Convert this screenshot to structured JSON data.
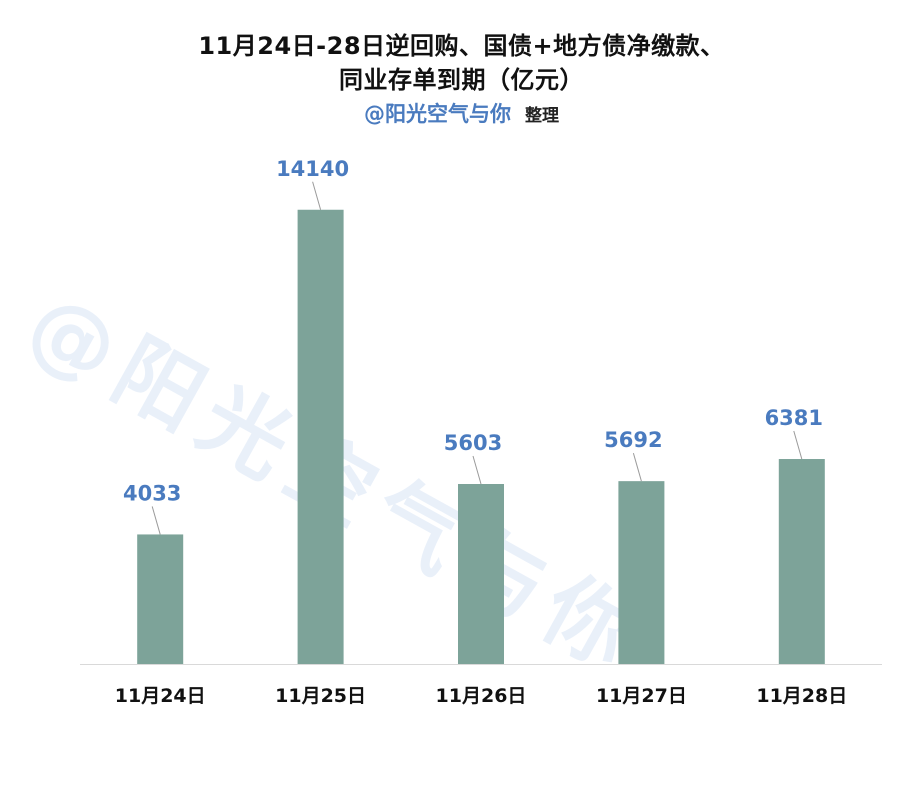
{
  "title_line1": "11月24日-28日逆回购、国债+地方债净缴款、",
  "title_line2": "同业存单到期（亿元）",
  "subtitle_author": "@阳光空气与你",
  "subtitle_note": "整理",
  "watermark": "@阳光空气与你",
  "colors": {
    "bar": "#7da399",
    "label": "#4a7bbf",
    "axis": "#d9d9d9"
  },
  "chart_data": {
    "type": "bar",
    "categories": [
      "11月24日",
      "11月25日",
      "11月26日",
      "11月27日",
      "11月28日"
    ],
    "values": [
      4033,
      14140,
      5603,
      5692,
      6381
    ],
    "ylim": [
      0,
      16000
    ],
    "grid": false,
    "data_labels": true
  }
}
